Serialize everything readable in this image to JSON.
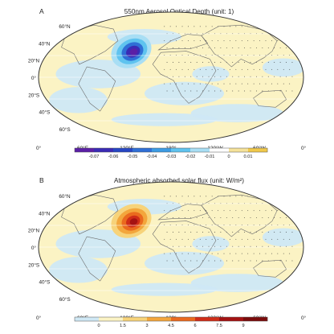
{
  "panels": [
    {
      "letter": "A",
      "title": "550nm Aerosol Optical Depth (unit: 1)",
      "lat_labels": [
        "60°N",
        "40°N",
        "20°N",
        "0°",
        "20°S",
        "40°S",
        "60°S"
      ],
      "lon_labels": [
        "0°",
        "60°E",
        "120°E",
        "180°",
        "120°W",
        "60°W",
        "0°"
      ],
      "colorbar_labels": [
        "-0.07",
        "-0.06",
        "-0.05",
        "-0.04",
        "-0.03",
        "-0.02",
        "-0.01",
        "0",
        "0.01"
      ],
      "colorbar_colors": [
        "#5b1fa6",
        "#3a2bb5",
        "#2646c4",
        "#2f6fd6",
        "#3c9be3",
        "#5fc3ef",
        "#a8def4",
        "#ffffff",
        "#f5e29a",
        "#f0c84a"
      ],
      "background_color": "#fbf3c4",
      "ocean_fill_color": "#cfe8f5",
      "hotspot_colors": [
        "#a8def4",
        "#5fc3ef",
        "#2f6fd6",
        "#3a2bb5",
        "#5b1fa6"
      ]
    },
    {
      "letter": "B",
      "title": "Atmospheric absorbed solar flux (unit: W/m²)",
      "lat_labels": [
        "60°N",
        "40°N",
        "20°N",
        "0°",
        "20°S",
        "40°S",
        "60°S"
      ],
      "lon_labels": [
        "0°",
        "60°E",
        "120°E",
        "180°",
        "120°W",
        "60°W",
        "0°"
      ],
      "colorbar_labels": [
        "0",
        "1.5",
        "3",
        "4.5",
        "6",
        "7.5",
        "9"
      ],
      "colorbar_colors": [
        "#cfe8f5",
        "#fbf3c4",
        "#f7d37a",
        "#f3a63c",
        "#ea6a1e",
        "#cf2d18",
        "#a41212",
        "#7a0b0b"
      ],
      "background_color": "#fbf3c4",
      "ocean_fill_color": "#cfe8f5",
      "hotspot_colors": [
        "#f7d37a",
        "#f3a63c",
        "#ea6a1e",
        "#cf2d18",
        "#a41212"
      ]
    }
  ]
}
